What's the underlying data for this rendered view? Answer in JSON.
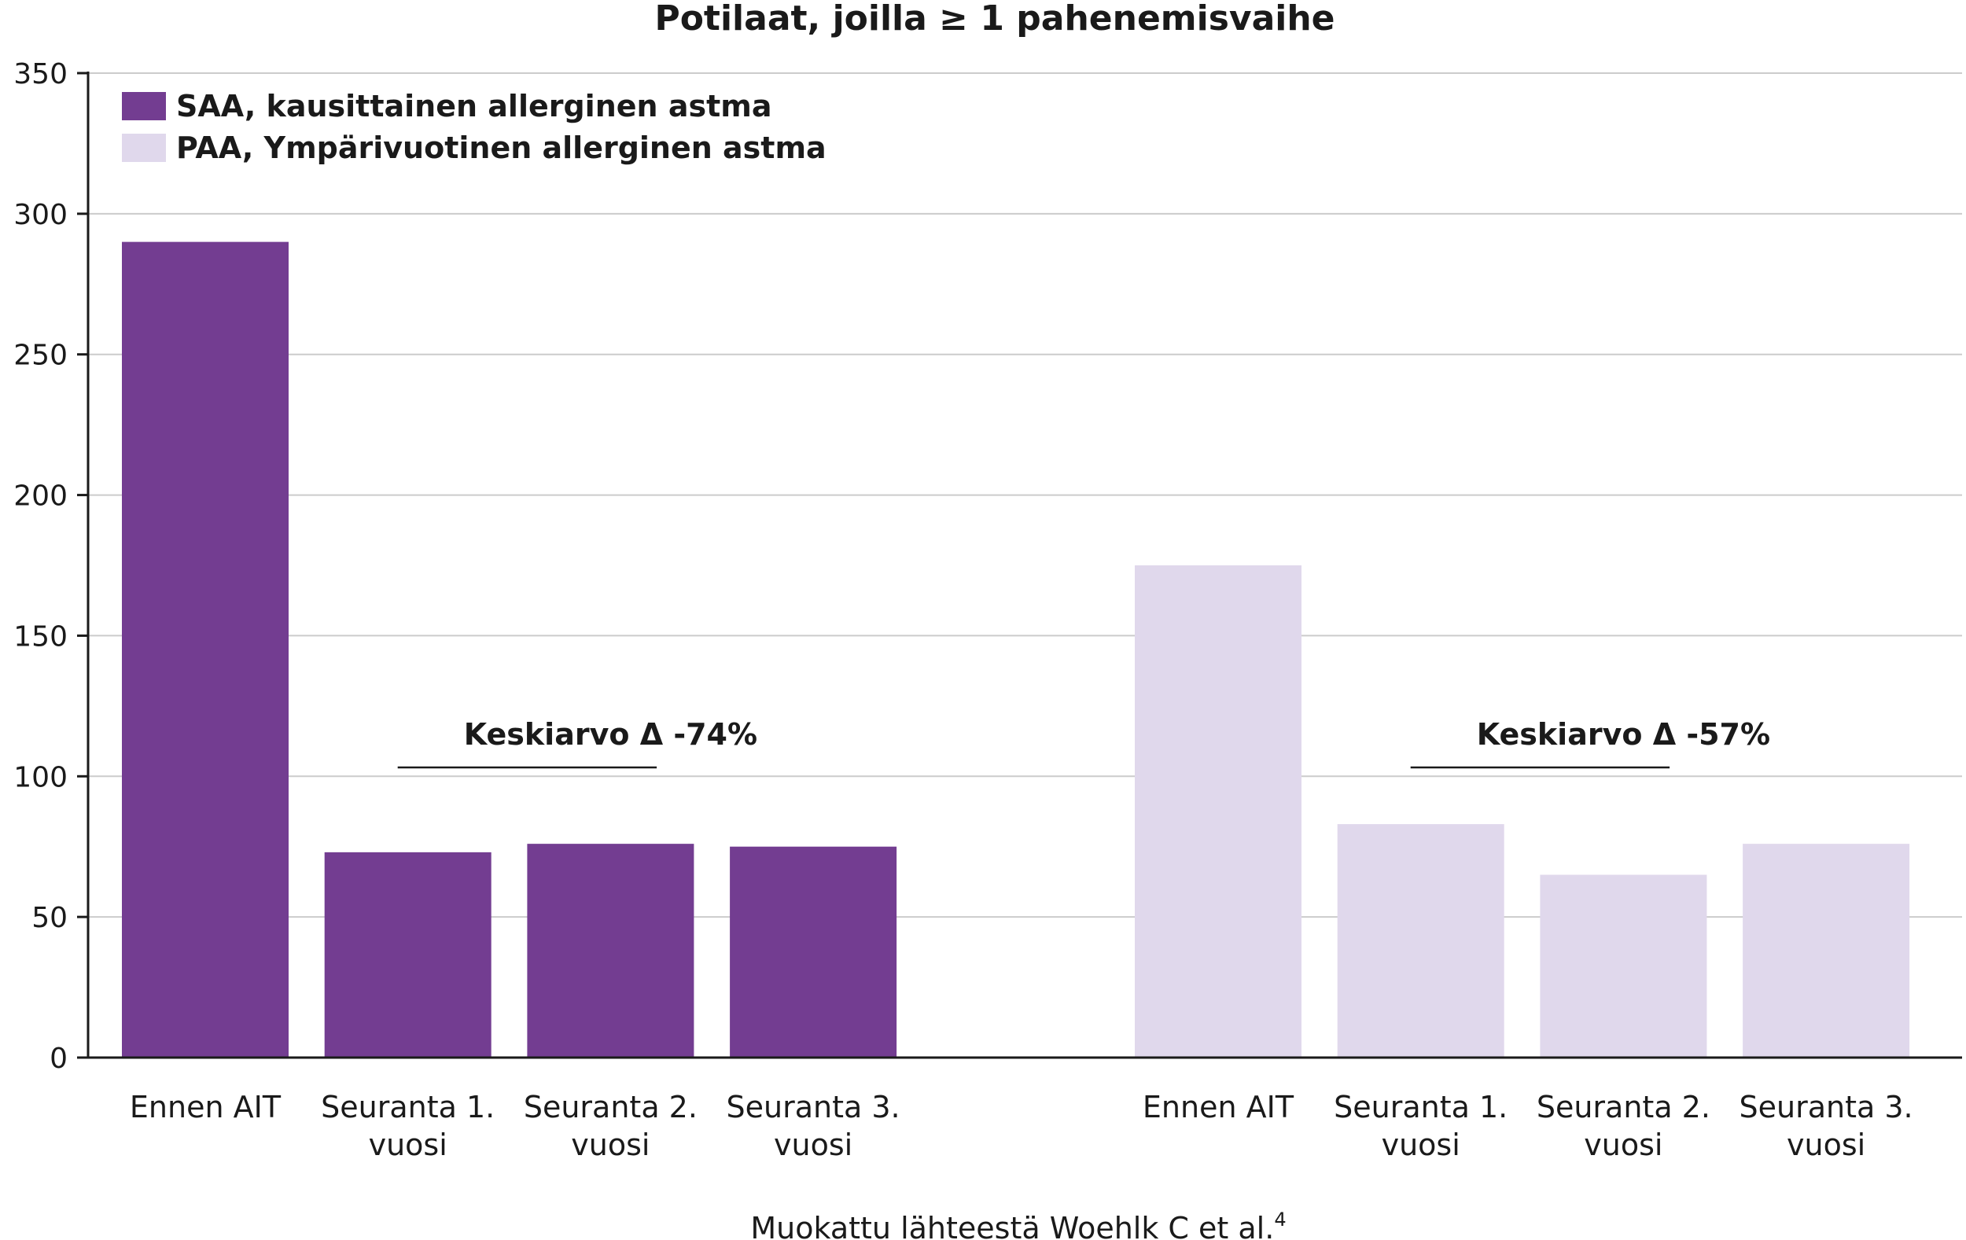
{
  "chart_data": {
    "type": "bar",
    "title": "Potilaat, joilla ≥ 1 pahenemisvaihe",
    "xlabel": "",
    "ylabel": "",
    "ylim": [
      0,
      350
    ],
    "yticks": [
      0,
      50,
      100,
      150,
      200,
      250,
      300,
      350
    ],
    "grid": true,
    "legend_position": "top-left",
    "groups": [
      {
        "series_name": "SAA, kausittainen allerginen astma",
        "color": "#733d91",
        "categories": [
          [
            "Ennen AIT"
          ],
          [
            "Seuranta 1.",
            "vuosi"
          ],
          [
            "Seuranta 2.",
            "vuosi"
          ],
          [
            "Seuranta 3.",
            "vuosi"
          ]
        ],
        "values": [
          290,
          73,
          76,
          75
        ],
        "annotation": "Keskiarvo Δ -74%"
      },
      {
        "series_name": "PAA, Ympärivuotinen allerginen astma",
        "color": "#e0d8ec",
        "categories": [
          [
            "Ennen AIT"
          ],
          [
            "Seuranta 1.",
            "vuosi"
          ],
          [
            "Seuranta 2.",
            "vuosi"
          ],
          [
            "Seuranta 3.",
            "vuosi"
          ]
        ],
        "values": [
          175,
          83,
          65,
          76
        ],
        "annotation": "Keskiarvo Δ -57%"
      }
    ],
    "source_note": "Muokattu lähteestä Woehlk C et al.",
    "source_superscript": "4",
    "axis_color": "#1a1a1a",
    "grid_color": "#cccccc"
  }
}
